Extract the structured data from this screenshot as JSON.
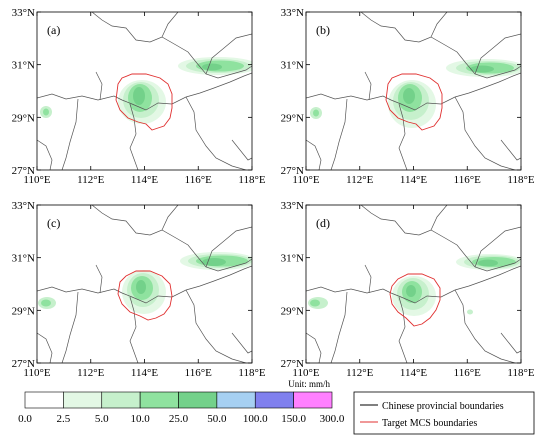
{
  "panels": [
    {
      "id": "a",
      "label": "(a)"
    },
    {
      "id": "b",
      "label": "(b)"
    },
    {
      "id": "c",
      "label": "(c)"
    },
    {
      "id": "d",
      "label": "(d)"
    }
  ],
  "axes": {
    "lon_ticks": [
      "110°E",
      "112°E",
      "114°E",
      "116°E",
      "118°E"
    ],
    "lat_ticks": [
      "33°N",
      "31°N",
      "29°N",
      "27°N"
    ],
    "lon_range": [
      110,
      118
    ],
    "lat_range": [
      27,
      33
    ]
  },
  "colorbar": {
    "unit_label": "Unit: mm/h",
    "tick_labels": [
      "0.0",
      "2.5",
      "5.0",
      "10.0",
      "25.0",
      "50.0",
      "100.0",
      "150.0",
      "300.0"
    ],
    "colors": [
      "#ffffff",
      "#e3f8e5",
      "#c6f0cc",
      "#8fe29f",
      "#73d18a",
      "#a6d0f2",
      "#8080ee",
      "#ff80ff"
    ]
  },
  "legend": {
    "entries": [
      {
        "label": "Chinese provincial boundaries",
        "color": "#000000"
      },
      {
        "label": "Target MCS boundaries",
        "color": "#e03030"
      }
    ]
  }
}
